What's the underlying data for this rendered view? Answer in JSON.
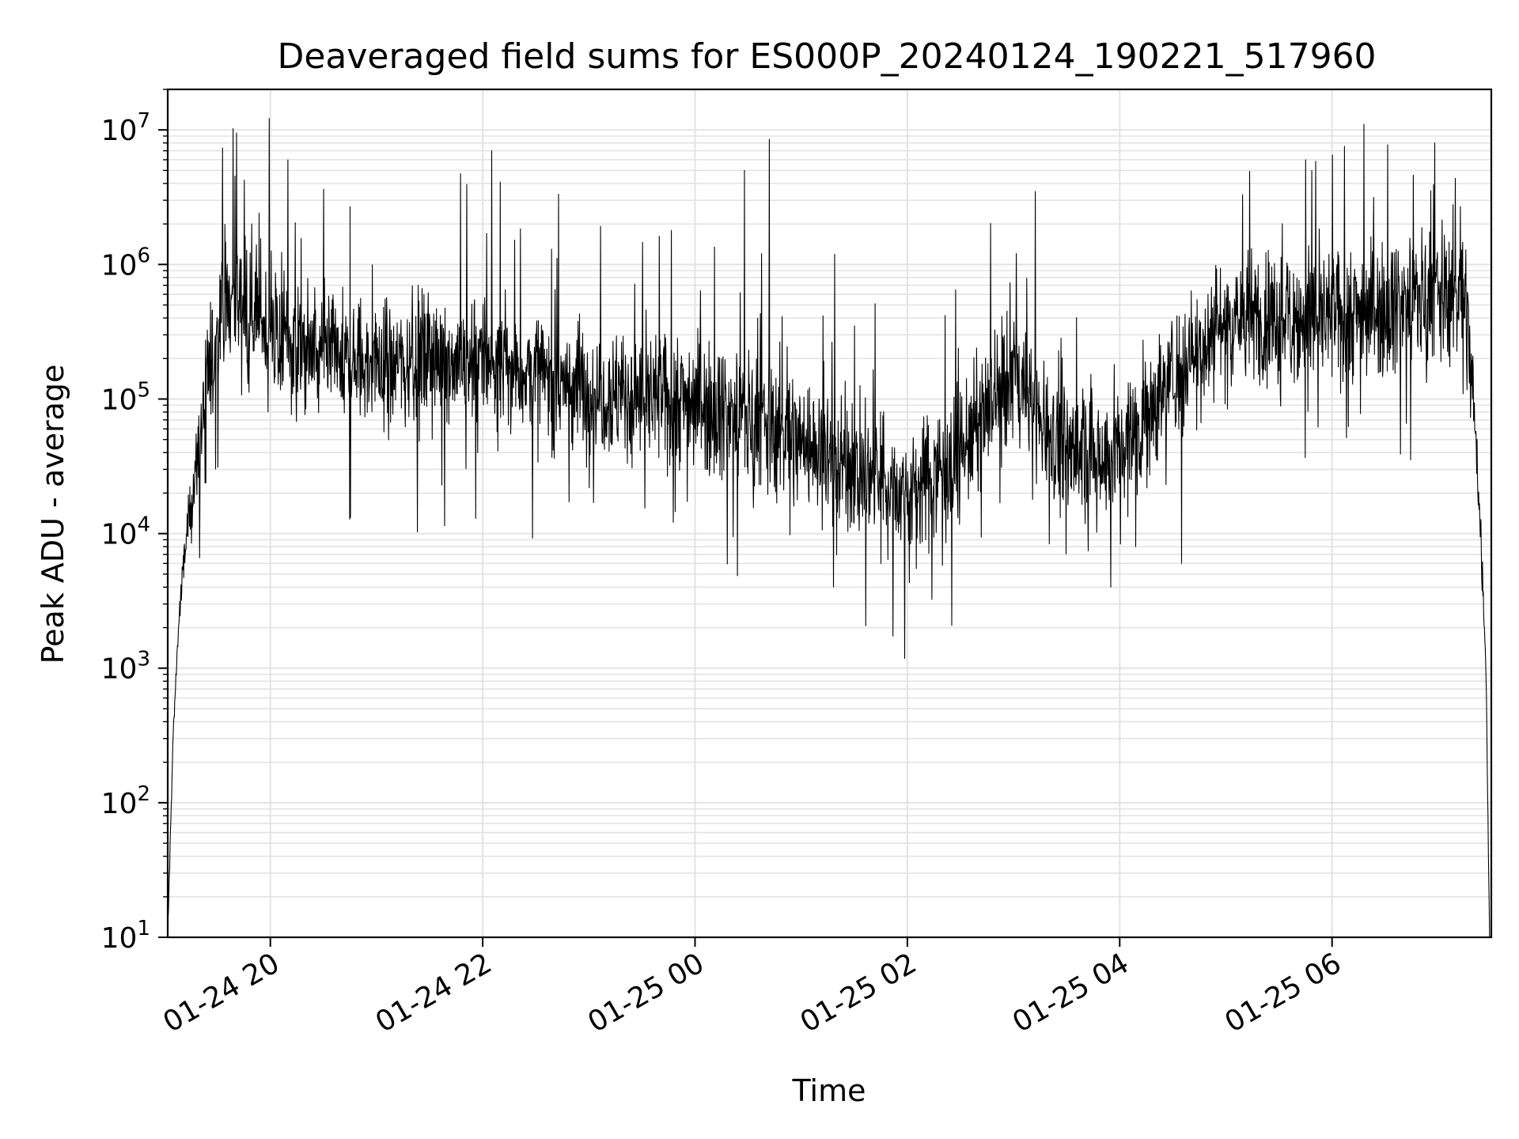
{
  "chart_data": {
    "type": "line",
    "title": "Deaveraged field sums for ES000P_20240124_190221_517960",
    "xlabel": "Time",
    "ylabel": "Peak ADU - average",
    "yscale": "log",
    "ylim": [
      10,
      20000000
    ],
    "xlim": [
      "2024-01-24 19:02",
      "2024-01-25 07:30"
    ],
    "grid": true,
    "x_ticks": [
      "01-24 20",
      "01-24 22",
      "01-25 00",
      "01-25 02",
      "01-25 04",
      "01-25 06"
    ],
    "x_tick_times": [
      "2024-01-24 20:00",
      "2024-01-24 22:00",
      "2024-01-25 00:00",
      "2024-01-25 02:00",
      "2024-01-25 04:00",
      "2024-01-25 06:00"
    ],
    "y_ticks": [
      {
        "value": 10,
        "base": "10",
        "exp": "1"
      },
      {
        "value": 100,
        "base": "10",
        "exp": "2"
      },
      {
        "value": 1000,
        "base": "10",
        "exp": "3"
      },
      {
        "value": 10000,
        "base": "10",
        "exp": "4"
      },
      {
        "value": 100000,
        "base": "10",
        "exp": "5"
      },
      {
        "value": 1000000,
        "base": "10",
        "exp": "6"
      },
      {
        "value": 10000000,
        "base": "10",
        "exp": "7"
      }
    ],
    "series": [
      {
        "color": "#000000",
        "x": [
          "2024-01-24 19:02",
          "2024-01-24 19:05",
          "2024-01-24 19:08",
          "2024-01-24 19:12",
          "2024-01-24 19:18",
          "2024-01-24 19:25",
          "2024-01-24 19:32",
          "2024-01-24 19:40",
          "2024-01-24 19:50",
          "2024-01-24 20:00",
          "2024-01-24 20:30",
          "2024-01-24 21:00",
          "2024-01-24 21:30",
          "2024-01-24 22:00",
          "2024-01-24 22:30",
          "2024-01-24 23:00",
          "2024-01-24 23:30",
          "2024-01-25 00:00",
          "2024-01-25 00:30",
          "2024-01-25 01:00",
          "2024-01-25 01:30",
          "2024-01-25 02:00",
          "2024-01-25 02:30",
          "2024-01-25 03:00",
          "2024-01-25 03:30",
          "2024-01-25 04:00",
          "2024-01-25 04:30",
          "2024-01-25 05:00",
          "2024-01-25 05:30",
          "2024-01-25 06:00",
          "2024-01-25 06:30",
          "2024-01-25 07:00",
          "2024-01-25 07:15",
          "2024-01-25 07:20",
          "2024-01-25 07:24",
          "2024-01-25 07:27",
          "2024-01-25 07:29"
        ],
        "y": [
          10,
          300,
          2000,
          8000,
          30000,
          150000,
          400000,
          600000,
          500000,
          300000,
          200000,
          180000,
          200000,
          200000,
          150000,
          120000,
          100000,
          100000,
          70000,
          50000,
          30000,
          20000,
          40000,
          150000,
          40000,
          40000,
          150000,
          400000,
          400000,
          400000,
          500000,
          600000,
          600000,
          100000,
          10000,
          1000,
          10
        ],
        "peaks": [
          {
            "x": "2024-01-24 19:41",
            "y": 9500000
          },
          {
            "x": "2024-01-24 20:10",
            "y": 6000000
          },
          {
            "x": "2024-01-24 22:05",
            "y": 7000000
          },
          {
            "x": "2024-01-25 00:28",
            "y": 5000000
          },
          {
            "x": "2024-01-25 00:42",
            "y": 8500000
          },
          {
            "x": "2024-01-25 05:45",
            "y": 6000000
          },
          {
            "x": "2024-01-25 06:18",
            "y": 11000000
          },
          {
            "x": "2024-01-25 06:58",
            "y": 8000000
          }
        ],
        "troughs": [
          {
            "x": "2024-01-25 01:45",
            "y": 6000
          },
          {
            "x": "2024-01-25 02:05",
            "y": 5500
          },
          {
            "x": "2024-01-25 03:55",
            "y": 4000
          },
          {
            "x": "2024-01-25 04:35",
            "y": 6000
          }
        ]
      }
    ]
  }
}
